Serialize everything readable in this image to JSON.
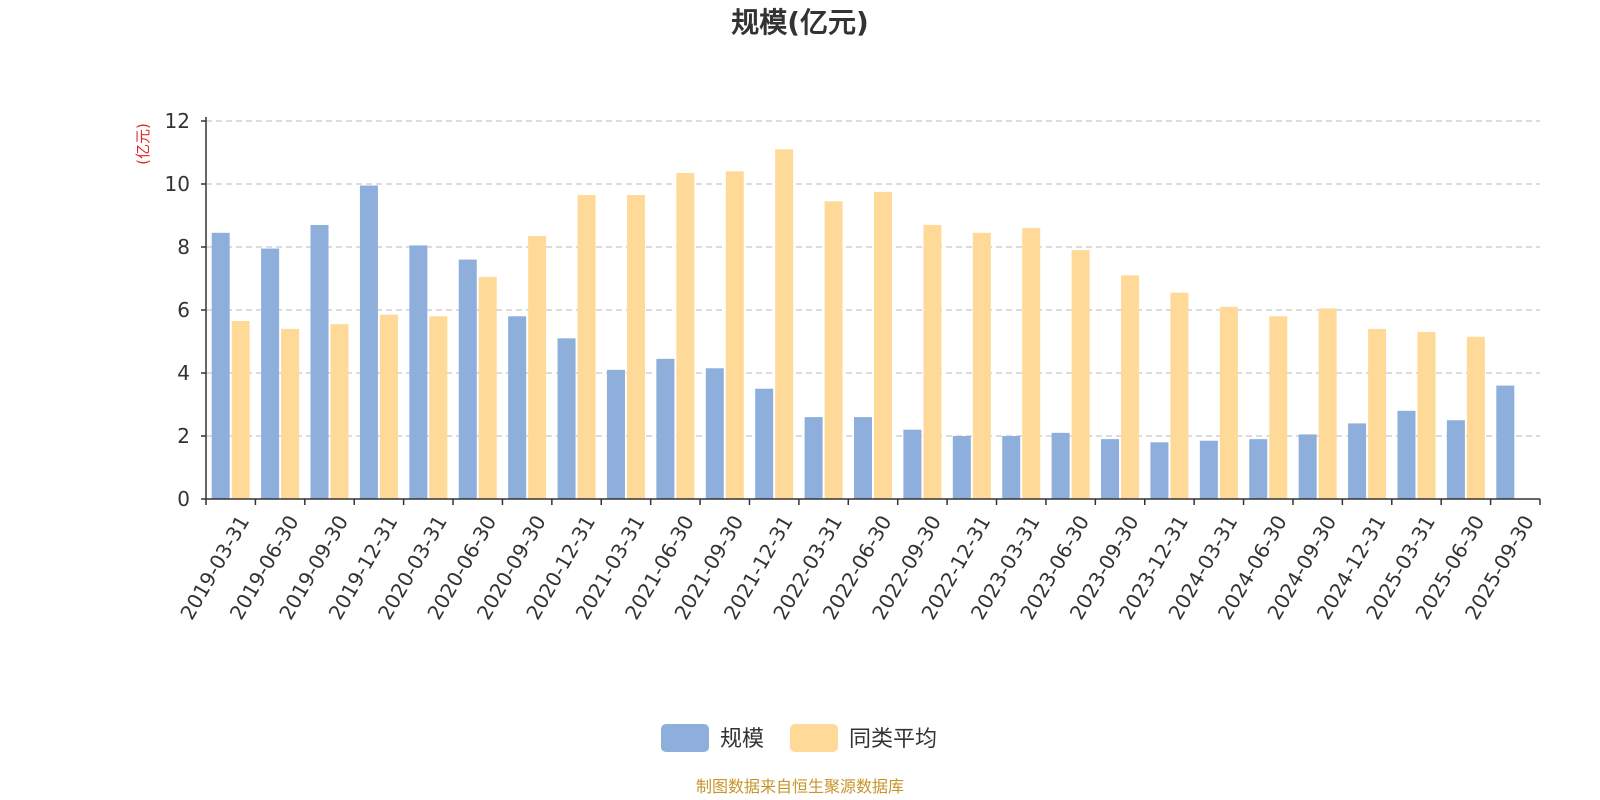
{
  "chart_data": {
    "type": "bar",
    "title": "规模(亿元)",
    "ylabel": "(亿元)",
    "ylim": [
      0,
      12
    ],
    "yticks": [
      0,
      2,
      4,
      6,
      8,
      10,
      12
    ],
    "grid": true,
    "legend_position": "bottom-center",
    "categories": [
      "2019-03-31",
      "2019-06-30",
      "2019-09-30",
      "2019-12-31",
      "2020-03-31",
      "2020-06-30",
      "2020-09-30",
      "2020-12-31",
      "2021-03-31",
      "2021-06-30",
      "2021-09-30",
      "2021-12-31",
      "2022-03-31",
      "2022-06-30",
      "2022-09-30",
      "2022-12-31",
      "2023-03-31",
      "2023-06-30",
      "2023-09-30",
      "2023-12-31",
      "2024-03-31",
      "2024-06-30",
      "2024-09-30",
      "2024-12-31",
      "2025-03-31",
      "2025-06-30",
      "2025-09-30"
    ],
    "series": [
      {
        "name": "规模",
        "color": "#8eaedb",
        "values": [
          8.45,
          7.95,
          8.7,
          9.95,
          8.05,
          7.6,
          5.8,
          5.1,
          4.1,
          4.45,
          4.15,
          3.5,
          2.6,
          2.6,
          2.2,
          2.0,
          2.0,
          2.1,
          1.9,
          1.8,
          1.85,
          1.9,
          2.05,
          2.4,
          2.8,
          2.5,
          3.6
        ]
      },
      {
        "name": "同类平均",
        "color": "#ffd998",
        "values": [
          5.65,
          5.4,
          5.55,
          5.85,
          5.8,
          7.05,
          8.35,
          9.65,
          9.65,
          10.35,
          10.4,
          11.1,
          9.45,
          9.75,
          8.7,
          8.45,
          8.6,
          7.9,
          7.1,
          6.55,
          6.1,
          5.8,
          6.05,
          5.4,
          5.3,
          5.15,
          null
        ]
      }
    ]
  },
  "source_note": "制图数据来自恒生聚源数据库",
  "colors": {
    "unit_label": "#e0272b",
    "source_note": "#c8952a",
    "axis": "#333333",
    "grid": "#c8c8c8"
  }
}
